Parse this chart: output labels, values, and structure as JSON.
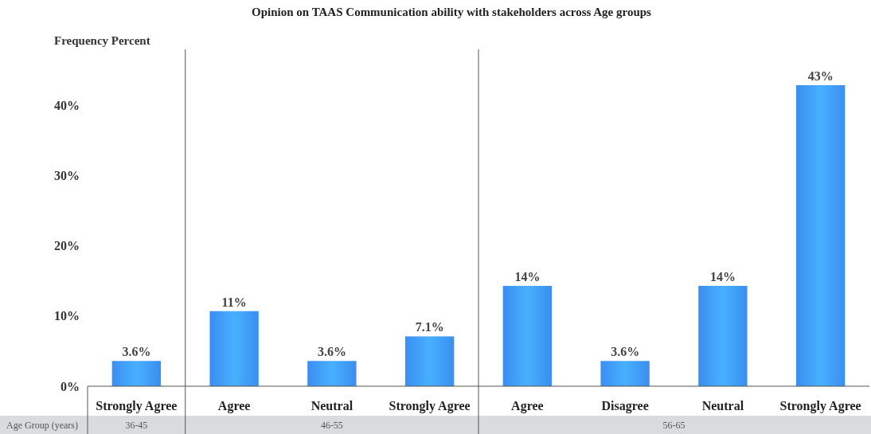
{
  "chart_data": {
    "type": "bar",
    "title": "Opinion on TAAS Communication ability with stakeholders across Age groups",
    "ylabel": "Frequency Percent",
    "categories": [
      "Strongly Agree",
      "Agree",
      "Neutral",
      "Strongly Agree",
      "Agree",
      "Disagree",
      "Neutral",
      "Strongly Agree"
    ],
    "values": [
      3.6,
      10.7,
      3.6,
      7.1,
      14.3,
      3.6,
      14.3,
      42.9
    ],
    "value_labels": [
      "3.6%",
      "11%",
      "3.6%",
      "7.1%",
      "14%",
      "3.6%",
      "14%",
      "43%"
    ],
    "color": "#3a8ef0",
    "ylim": [
      0,
      48
    ],
    "yticks": [
      {
        "value": 0,
        "label": "0%"
      },
      {
        "value": 10,
        "label": "10%"
      },
      {
        "value": 20,
        "label": "20%"
      },
      {
        "value": 30,
        "label": "30%"
      },
      {
        "value": 40,
        "label": "40%"
      }
    ],
    "annotations": [
      "Age Group (years)",
      "36-45",
      "46-55",
      "56-65"
    ],
    "grid": false
  }
}
